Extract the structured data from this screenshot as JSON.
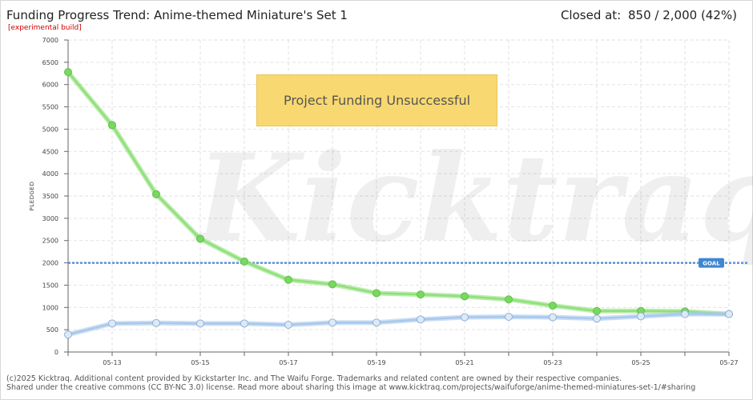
{
  "header": {
    "title": "Funding Progress Trend: Anime-themed Miniature's Set 1",
    "subtitle": "[experimental build]",
    "closed_label": "Closed at:",
    "closed_value": "850 / 2,000 (42%)"
  },
  "banner": {
    "text": "Project Funding Unsuccessful"
  },
  "footer": {
    "line1": "(c)2025 Kicktraq. Additional content provided by Kickstarter Inc. and The Waifu Forge. Trademarks and related content are owned by their respective companies.",
    "line2": "Shared under the creative commons (CC BY-NC 3.0) license. Read more about sharing this image at www.kicktraq.com/projects/waifuforge/anime-themed-miniatures-set-1/#sharing"
  },
  "chart_data": {
    "type": "line",
    "title": "Funding Progress Trend: Anime-themed Miniature's Set 1",
    "ylabel": "PLEDGED",
    "ylim": [
      0,
      7000
    ],
    "yticks": [
      0,
      500,
      1000,
      1500,
      2000,
      2500,
      3000,
      3500,
      4000,
      4500,
      5000,
      5500,
      6000,
      6500,
      7000
    ],
    "xticks": [
      "05-13",
      "05-15",
      "05-17",
      "05-19",
      "05-21",
      "05-23",
      "05-25",
      "05-27"
    ],
    "x": [
      "05-12",
      "05-13",
      "05-14",
      "05-15",
      "05-16",
      "05-17",
      "05-18",
      "05-19",
      "05-20",
      "05-21",
      "05-22",
      "05-23",
      "05-24",
      "05-25",
      "05-26",
      "05-27"
    ],
    "goal": 2000,
    "goal_label": "GOAL",
    "grid": true,
    "series": [
      {
        "key": "trend",
        "color": "#8fe07a",
        "values": [
          6280,
          5090,
          3540,
          2540,
          2030,
          1620,
          1520,
          1320,
          1290,
          1250,
          1180,
          1040,
          920,
          920,
          910,
          850
        ]
      },
      {
        "key": "pledged",
        "color": "#a8c8ec",
        "values": [
          390,
          640,
          650,
          640,
          640,
          610,
          660,
          660,
          730,
          780,
          790,
          780,
          750,
          800,
          850,
          850
        ]
      }
    ],
    "colors": {
      "goal_line": "#5b93d6",
      "goal_badge": "#3f86d3",
      "axis": "#666666",
      "grid": "#e2e2e2"
    }
  }
}
